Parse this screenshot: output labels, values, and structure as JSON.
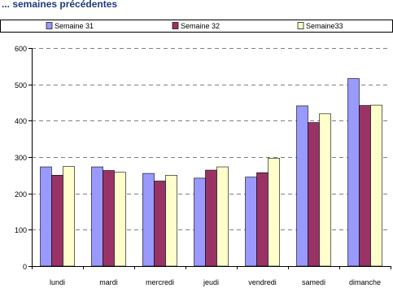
{
  "page": {
    "partial_title": "... semaines précédentes"
  },
  "chart_data": {
    "type": "bar",
    "categories": [
      "lundi",
      "mardi",
      "mercredi",
      "jeudi",
      "vendredi",
      "samedi",
      "dimanche"
    ],
    "series": [
      {
        "name": "Semaine 31",
        "color": "#9999ff",
        "values": [
          273,
          273,
          255,
          242,
          245,
          441,
          516
        ]
      },
      {
        "name": "Semaine 32",
        "color": "#993366",
        "values": [
          250,
          263,
          234,
          264,
          257,
          395,
          442
        ]
      },
      {
        "name": "Semaine33",
        "color": "#ffffcc",
        "values": [
          274,
          258,
          250,
          273,
          297,
          419,
          443
        ]
      }
    ],
    "ylim": [
      0,
      600
    ],
    "yticks": [
      0,
      100,
      200,
      300,
      400,
      500,
      600
    ],
    "grid": true,
    "legend": "top",
    "title": "",
    "xlabel": "",
    "ylabel": ""
  }
}
